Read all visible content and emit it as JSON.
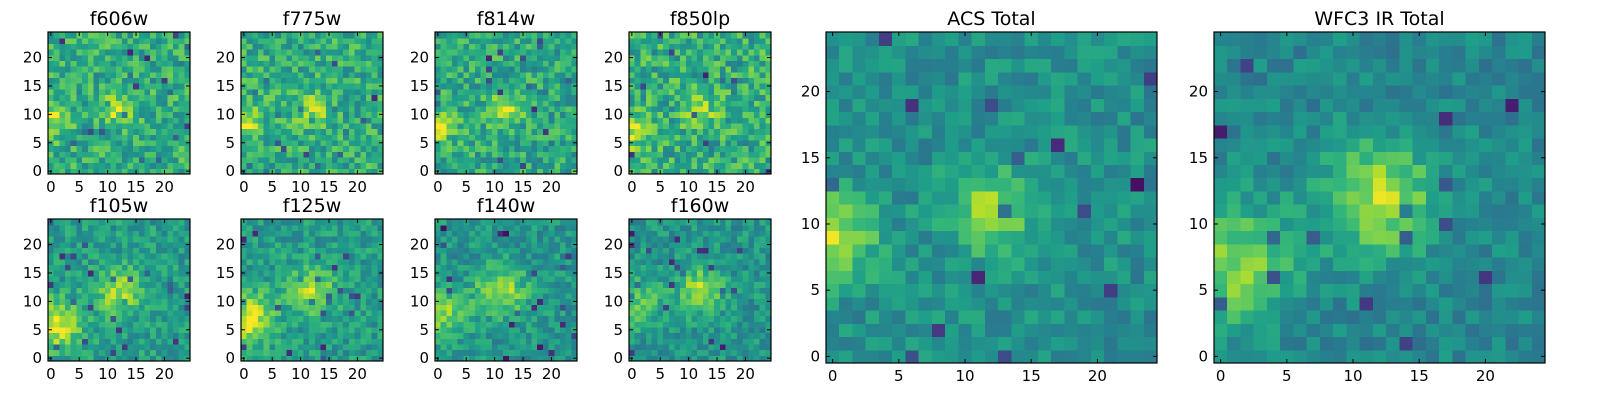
{
  "figure": {
    "background": "#ffffff"
  },
  "colormap": {
    "name": "viridis",
    "stops": [
      "#440154",
      "#482878",
      "#3e4a89",
      "#31688e",
      "#26828e",
      "#1f9e89",
      "#35b779",
      "#6ece58",
      "#b5de2b",
      "#fde725"
    ]
  },
  "chart_data": [
    {
      "id": "f606w",
      "type": "heatmap",
      "title": "f606w",
      "grid_size": 25,
      "xlim": [
        0,
        24
      ],
      "ylim": [
        0,
        24
      ],
      "x_ticks": [
        0,
        5,
        10,
        15,
        20
      ],
      "y_ticks": [
        0,
        5,
        10,
        15,
        20
      ],
      "sources": [
        {
          "x": 12,
          "y": 11,
          "sigma": 2.0,
          "amp": 0.28
        },
        {
          "x": 0,
          "y": 9,
          "sigma": 2.2,
          "amp": 0.28
        }
      ],
      "background": 0.62,
      "noise": 0.34,
      "seed": 11
    },
    {
      "id": "f775w",
      "type": "heatmap",
      "title": "f775w",
      "grid_size": 25,
      "xlim": [
        0,
        24
      ],
      "ylim": [
        0,
        24
      ],
      "x_ticks": [
        0,
        5,
        10,
        15,
        20
      ],
      "y_ticks": [
        0,
        5,
        10,
        15,
        20
      ],
      "sources": [
        {
          "x": 12,
          "y": 11,
          "sigma": 2.0,
          "amp": 0.25
        },
        {
          "x": 0,
          "y": 9,
          "sigma": 2.2,
          "amp": 0.3
        }
      ],
      "background": 0.62,
      "noise": 0.34,
      "seed": 23
    },
    {
      "id": "f814w",
      "type": "heatmap",
      "title": "f814w",
      "grid_size": 25,
      "xlim": [
        0,
        24
      ],
      "ylim": [
        0,
        24
      ],
      "x_ticks": [
        0,
        5,
        10,
        15,
        20
      ],
      "y_ticks": [
        0,
        5,
        10,
        15,
        20
      ],
      "sources": [
        {
          "x": 12,
          "y": 11,
          "sigma": 2.0,
          "amp": 0.28
        },
        {
          "x": 0,
          "y": 8,
          "sigma": 2.2,
          "amp": 0.32
        }
      ],
      "background": 0.6,
      "noise": 0.34,
      "seed": 37
    },
    {
      "id": "f850lp",
      "type": "heatmap",
      "title": "f850lp",
      "grid_size": 25,
      "xlim": [
        0,
        24
      ],
      "ylim": [
        0,
        24
      ],
      "x_ticks": [
        0,
        5,
        10,
        15,
        20
      ],
      "y_ticks": [
        0,
        5,
        10,
        15,
        20
      ],
      "sources": [
        {
          "x": 12,
          "y": 11,
          "sigma": 2.0,
          "amp": 0.22
        },
        {
          "x": 0,
          "y": 7,
          "sigma": 2.2,
          "amp": 0.28
        }
      ],
      "background": 0.62,
      "noise": 0.38,
      "seed": 41
    },
    {
      "id": "f105w",
      "type": "heatmap",
      "title": "f105w",
      "grid_size": 25,
      "xlim": [
        0,
        24
      ],
      "ylim": [
        0,
        24
      ],
      "x_ticks": [
        0,
        5,
        10,
        15,
        20
      ],
      "y_ticks": [
        0,
        5,
        10,
        15,
        20
      ],
      "sources": [
        {
          "x": 12,
          "y": 12,
          "sigma": 2.8,
          "amp": 0.33
        },
        {
          "x": 1,
          "y": 6,
          "sigma": 3.0,
          "amp": 0.4
        }
      ],
      "background": 0.55,
      "noise": 0.26,
      "seed": 53
    },
    {
      "id": "f125w",
      "type": "heatmap",
      "title": "f125w",
      "grid_size": 25,
      "xlim": [
        0,
        24
      ],
      "ylim": [
        0,
        24
      ],
      "x_ticks": [
        0,
        5,
        10,
        15,
        20
      ],
      "y_ticks": [
        0,
        5,
        10,
        15,
        20
      ],
      "sources": [
        {
          "x": 12,
          "y": 12,
          "sigma": 2.8,
          "amp": 0.32
        },
        {
          "x": 1,
          "y": 7,
          "sigma": 3.0,
          "amp": 0.4
        }
      ],
      "background": 0.55,
      "noise": 0.26,
      "seed": 67
    },
    {
      "id": "f140w",
      "type": "heatmap",
      "title": "f140w",
      "grid_size": 25,
      "xlim": [
        0,
        24
      ],
      "ylim": [
        0,
        24
      ],
      "x_ticks": [
        0,
        5,
        10,
        15,
        20
      ],
      "y_ticks": [
        0,
        5,
        10,
        15,
        20
      ],
      "sources": [
        {
          "x": 11,
          "y": 12,
          "sigma": 3.0,
          "amp": 0.36
        },
        {
          "x": 1,
          "y": 8,
          "sigma": 3.0,
          "amp": 0.3
        }
      ],
      "background": 0.52,
      "noise": 0.26,
      "seed": 71
    },
    {
      "id": "f160w",
      "type": "heatmap",
      "title": "f160w",
      "grid_size": 25,
      "xlim": [
        0,
        24
      ],
      "ylim": [
        0,
        24
      ],
      "x_ticks": [
        0,
        5,
        10,
        15,
        20
      ],
      "y_ticks": [
        0,
        5,
        10,
        15,
        20
      ],
      "sources": [
        {
          "x": 12,
          "y": 12,
          "sigma": 2.6,
          "amp": 0.36
        },
        {
          "x": 1,
          "y": 10,
          "sigma": 3.0,
          "amp": 0.22
        }
      ],
      "background": 0.52,
      "noise": 0.26,
      "seed": 83
    },
    {
      "id": "acs-total",
      "type": "heatmap",
      "title": "ACS Total",
      "grid_size": 25,
      "xlim": [
        0,
        24
      ],
      "ylim": [
        0,
        24
      ],
      "x_ticks": [
        0,
        5,
        10,
        15,
        20
      ],
      "y_ticks": [
        0,
        5,
        10,
        15,
        20
      ],
      "sources": [
        {
          "x": 12,
          "y": 11,
          "sigma": 2.3,
          "amp": 0.34
        },
        {
          "x": 0,
          "y": 9,
          "sigma": 2.3,
          "amp": 0.38
        }
      ],
      "background": 0.5,
      "noise": 0.22,
      "seed": 97
    },
    {
      "id": "wfc3-ir-total",
      "type": "heatmap",
      "title": "WFC3 IR Total",
      "grid_size": 25,
      "xlim": [
        0,
        24
      ],
      "ylim": [
        0,
        24
      ],
      "x_ticks": [
        0,
        5,
        10,
        15,
        20
      ],
      "y_ticks": [
        0,
        5,
        10,
        15,
        20
      ],
      "sources": [
        {
          "x": 12,
          "y": 12,
          "sigma": 3.0,
          "amp": 0.42
        },
        {
          "x": 1,
          "y": 7,
          "sigma": 3.2,
          "amp": 0.35
        }
      ],
      "background": 0.46,
      "noise": 0.2,
      "seed": 113
    }
  ]
}
